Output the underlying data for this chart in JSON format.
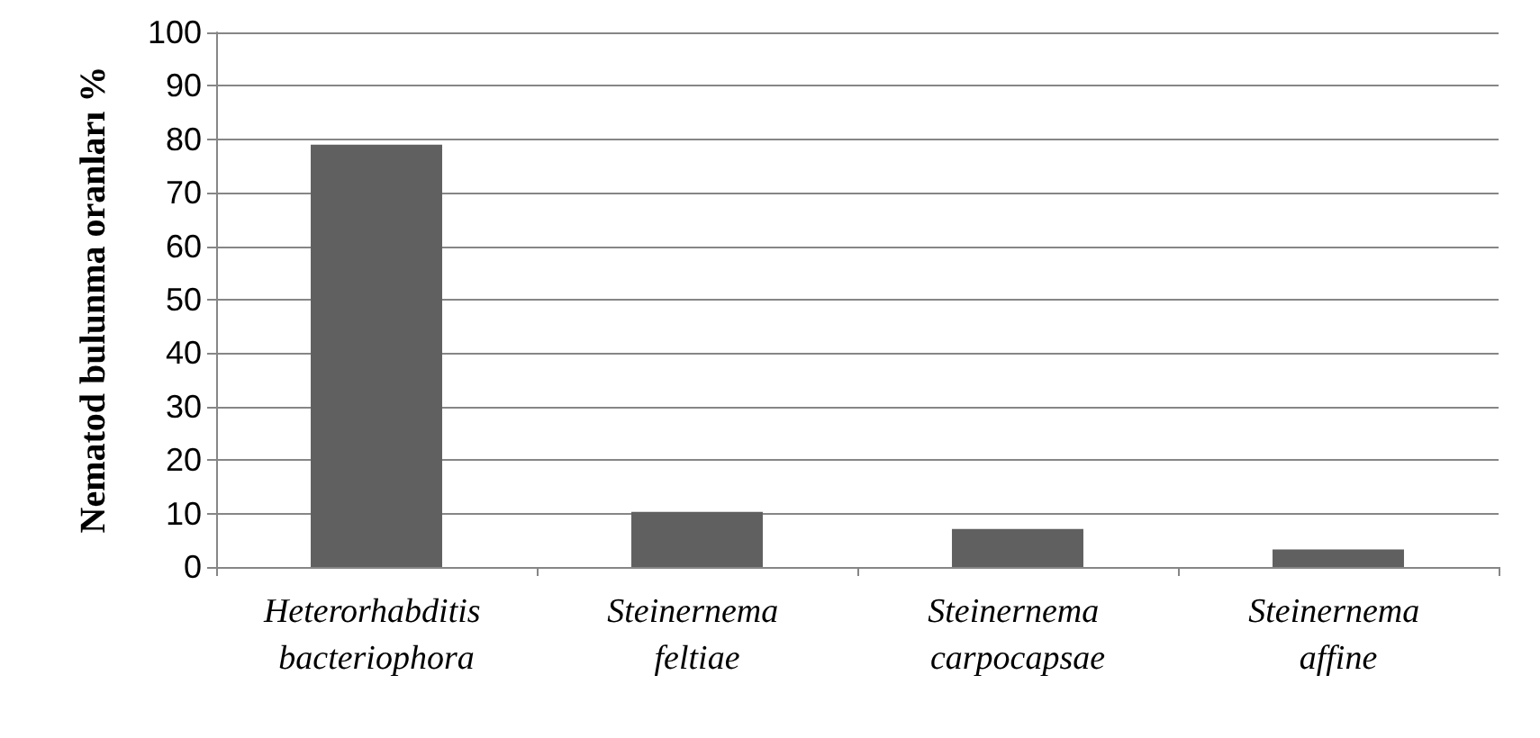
{
  "chart_data": {
    "type": "bar",
    "ylabel": "Nematod bulunma oranları %",
    "categories": [
      "Heterorhabditis bacteriophora",
      "Steinernema feltiae",
      "Steinernema carpocapsae",
      "Steinernema affine"
    ],
    "values": [
      79,
      10.3,
      7.1,
      3.3
    ],
    "color": "#606060",
    "ylim": [
      0,
      100
    ],
    "yticks": [
      0,
      10,
      20,
      30,
      40,
      50,
      60,
      70,
      80,
      90,
      100
    ],
    "grid": "y"
  }
}
